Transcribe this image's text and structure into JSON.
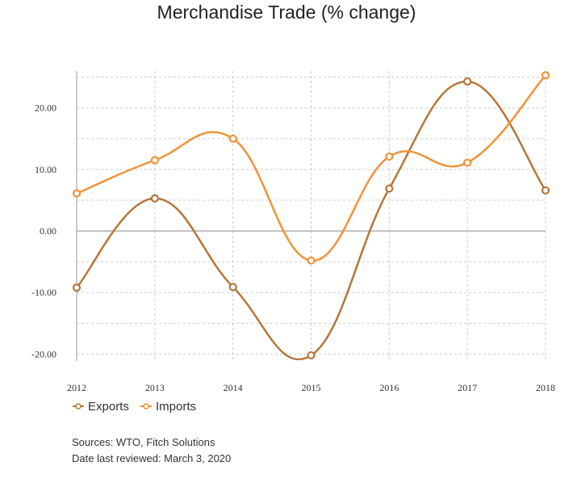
{
  "chart_data": {
    "type": "line",
    "title": "Merchandise Trade (% change)",
    "xlabel": "",
    "ylabel": "",
    "categories": [
      "2012",
      "2013",
      "2014",
      "2015",
      "2016",
      "2017",
      "2018"
    ],
    "series": [
      {
        "name": "Exports",
        "color": "#b5773a",
        "values": [
          -9.2,
          5.3,
          -9.1,
          -20.2,
          6.9,
          24.3,
          6.6
        ]
      },
      {
        "name": "Imports",
        "color": "#f0943a",
        "values": [
          6.1,
          11.5,
          15.0,
          -4.8,
          12.1,
          11.1,
          25.3
        ]
      }
    ],
    "ylim": [
      -20,
      26
    ],
    "yticks": [
      -20,
      -10,
      0,
      10,
      20
    ],
    "ytick_labels": [
      "-20.00",
      "-10.00",
      "0.00",
      "10.00",
      "20.00"
    ],
    "grid": true,
    "legend_position": "bottom-left"
  },
  "footer": {
    "sources": "Sources: WTO, Fitch Solutions",
    "reviewed": "Date last reviewed: March 3, 2020"
  }
}
